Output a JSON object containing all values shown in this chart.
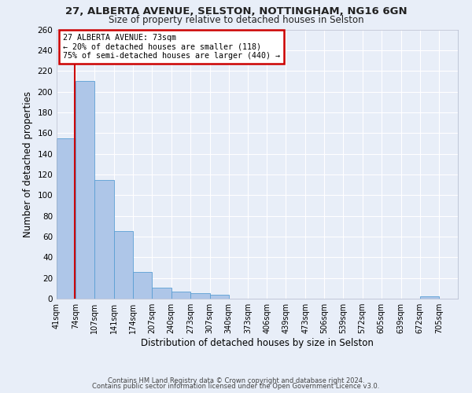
{
  "title1": "27, ALBERTA AVENUE, SELSTON, NOTTINGHAM, NG16 6GN",
  "title2": "Size of property relative to detached houses in Selston",
  "xlabel": "Distribution of detached houses by size in Selston",
  "ylabel": "Number of detached properties",
  "bar_labels": [
    "41sqm",
    "74sqm",
    "107sqm",
    "141sqm",
    "174sqm",
    "207sqm",
    "240sqm",
    "273sqm",
    "307sqm",
    "340sqm",
    "373sqm",
    "406sqm",
    "439sqm",
    "473sqm",
    "506sqm",
    "539sqm",
    "572sqm",
    "605sqm",
    "639sqm",
    "672sqm",
    "705sqm"
  ],
  "bar_values": [
    155,
    210,
    115,
    65,
    26,
    11,
    7,
    5,
    4,
    0,
    0,
    0,
    0,
    0,
    0,
    0,
    0,
    0,
    0,
    2,
    0
  ],
  "bar_color": "#aec6e8",
  "bar_edge_color": "#5a9fd4",
  "fig_bg_color": "#e8eef8",
  "ax_bg_color": "#e8eef8",
  "grid_color": "#ffffff",
  "vline_x": 73,
  "vline_color": "#cc0000",
  "annotation_title": "27 ALBERTA AVENUE: 73sqm",
  "annotation_line1": "← 20% of detached houses are smaller (118)",
  "annotation_line2": "75% of semi-detached houses are larger (440) →",
  "annotation_box_edge_color": "#cc0000",
  "ylim": [
    0,
    260
  ],
  "yticks": [
    0,
    20,
    40,
    60,
    80,
    100,
    120,
    140,
    160,
    180,
    200,
    220,
    240,
    260
  ],
  "footer1": "Contains HM Land Registry data © Crown copyright and database right 2024.",
  "footer2": "Contains public sector information licensed under the Open Government Licence v3.0.",
  "bin_edges": [
    41,
    74,
    107,
    141,
    174,
    207,
    240,
    273,
    307,
    340,
    373,
    406,
    439,
    473,
    506,
    539,
    572,
    605,
    639,
    672,
    705,
    738
  ]
}
